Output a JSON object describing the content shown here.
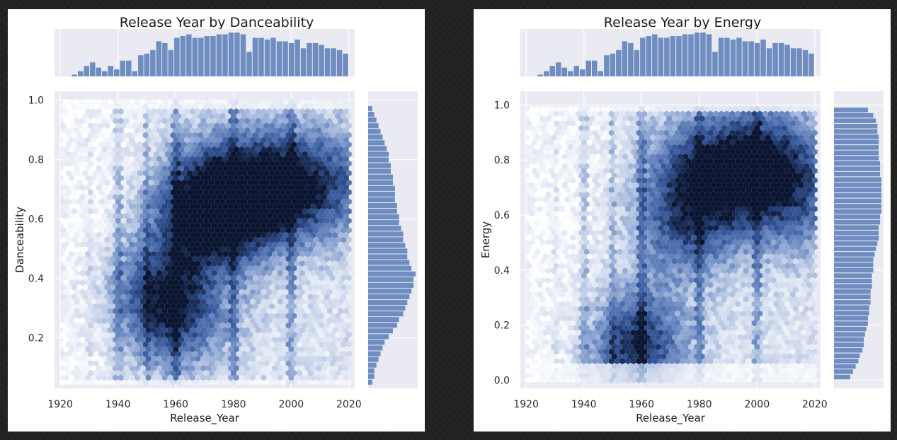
{
  "colors": {
    "accent": "#5b7fb8",
    "axes_bg": "#eaeaf2",
    "hex_max": "#0b1530",
    "page_bg": "#232323"
  },
  "chart_data": [
    {
      "type": "hexbin",
      "title": "Release Year by Danceability",
      "xlabel": "Release_Year",
      "ylabel": "Danceability",
      "xlim": [
        1918,
        2022
      ],
      "ylim": [
        0.03,
        1.03
      ],
      "xticks": [
        "1920",
        "1940",
        "1960",
        "1980",
        "2000",
        "2020"
      ],
      "yticks": [
        "0.2",
        "0.4",
        "0.6",
        "0.8",
        "1.0"
      ],
      "grid": true,
      "marginal_x_hist": [
        1,
        3,
        6,
        8,
        5,
        3,
        6,
        4,
        9,
        9,
        3,
        12,
        13,
        15,
        20,
        19,
        15,
        22,
        23,
        24,
        22,
        22,
        23,
        23,
        24,
        24,
        25,
        25,
        24,
        14,
        22,
        22,
        21,
        22,
        20,
        20,
        19,
        21,
        16,
        19,
        19,
        18,
        16,
        16,
        15,
        13
      ],
      "marginal_y_hist": [
        2,
        3,
        3,
        4,
        5,
        6,
        7,
        8,
        10,
        12,
        14,
        15,
        17,
        18,
        19,
        20,
        21,
        22,
        22,
        23,
        21,
        20,
        19,
        19,
        18,
        17,
        17,
        16,
        15,
        15,
        14,
        14,
        13,
        13,
        13,
        12,
        12,
        11,
        11,
        10,
        10,
        9,
        8,
        7,
        6,
        5,
        4,
        3,
        2
      ],
      "density_modes": [
        {
          "x": 1955,
          "y": 0.28,
          "strength": 0.85
        },
        {
          "x": 1972,
          "y": 0.62,
          "strength": 1.0
        },
        {
          "x": 1985,
          "y": 0.7,
          "strength": 0.8
        },
        {
          "x": 2008,
          "y": 0.72,
          "strength": 0.7
        },
        {
          "x": 1946,
          "y": 0.4,
          "strength": 0.5
        }
      ]
    },
    {
      "type": "hexbin",
      "title": "Release Year by Energy",
      "xlabel": "Release_Year",
      "ylabel": "Energy",
      "xlim": [
        1918,
        2022
      ],
      "ylim": [
        -0.03,
        1.05
      ],
      "xticks": [
        "1920",
        "1940",
        "1960",
        "1980",
        "2000",
        "2020"
      ],
      "yticks": [
        "0.0",
        "0.2",
        "0.4",
        "0.6",
        "0.8",
        "1.0"
      ],
      "grid": true,
      "marginal_x_hist": [
        1,
        3,
        6,
        8,
        5,
        3,
        6,
        4,
        9,
        9,
        3,
        12,
        13,
        15,
        20,
        19,
        15,
        22,
        23,
        24,
        22,
        22,
        23,
        23,
        24,
        24,
        25,
        25,
        24,
        14,
        22,
        22,
        21,
        22,
        20,
        20,
        19,
        21,
        16,
        19,
        19,
        18,
        16,
        16,
        15,
        13
      ],
      "marginal_y_hist": [
        12,
        14,
        16,
        18,
        19,
        21,
        22,
        22,
        23,
        24,
        25,
        25,
        26,
        26,
        27,
        27,
        27,
        28,
        28,
        28,
        29,
        29,
        29,
        30,
        31,
        32,
        33,
        33,
        33,
        34,
        34,
        35,
        35,
        35,
        35,
        35,
        35,
        35,
        34,
        34,
        34,
        33,
        33,
        33,
        33,
        33,
        32,
        32,
        31,
        29,
        25
      ],
      "density_modes": [
        {
          "x": 1955,
          "y": 0.12,
          "strength": 1.0
        },
        {
          "x": 1982,
          "y": 0.75,
          "strength": 0.8
        },
        {
          "x": 2003,
          "y": 0.8,
          "strength": 0.75
        },
        {
          "x": 1975,
          "y": 0.55,
          "strength": 0.55
        },
        {
          "x": 2012,
          "y": 0.65,
          "strength": 0.5
        }
      ]
    }
  ]
}
